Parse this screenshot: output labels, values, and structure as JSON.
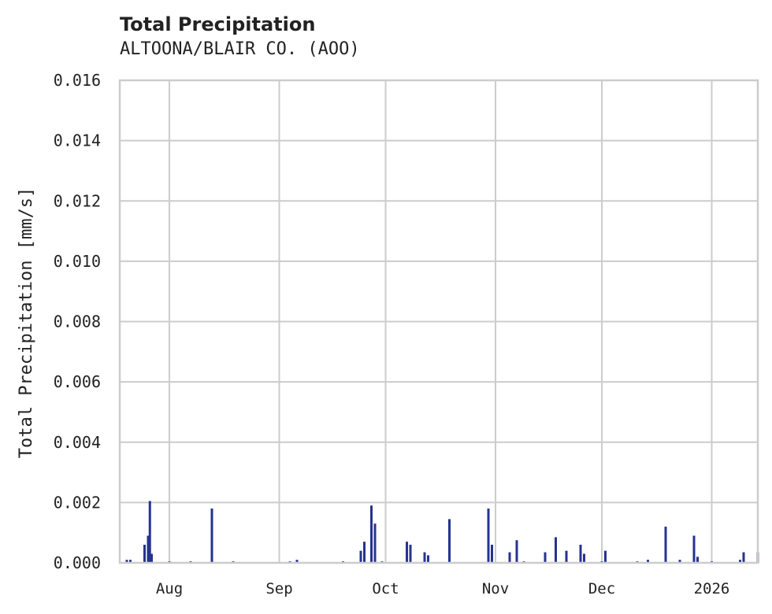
{
  "header": {
    "title": "Total Precipitation",
    "subtitle": "ALTOONA/BLAIR CO. (AOO)"
  },
  "colors": {
    "bar": "#26338f",
    "grid": "#cccccc",
    "frame": "#cccccc",
    "text": "#222222"
  },
  "chart_data": {
    "type": "bar",
    "title": "Total Precipitation",
    "subtitle": "ALTOONA/BLAIR CO. (AOO)",
    "xlabel": "",
    "ylabel": "Total Precipitation [mm/s]",
    "ylim": [
      0,
      0.016
    ],
    "yticks": [
      "0.000",
      "0.002",
      "0.004",
      "0.006",
      "0.008",
      "0.010",
      "0.012",
      "0.014",
      "0.016"
    ],
    "xticks": [
      "Aug",
      "Sep",
      "Oct",
      "Nov",
      "Dec",
      "2026"
    ],
    "grid": true,
    "legend": null,
    "x_range": [
      "2025-07-18",
      "2026-01-14"
    ],
    "series": [
      {
        "name": "Total Precipitation",
        "points": [
          {
            "x": "2025-07-20",
            "y": 0.0001
          },
          {
            "x": "2025-07-21",
            "y": 0.0001
          },
          {
            "x": "2025-07-25",
            "y": 0.0006
          },
          {
            "x": "2025-07-26",
            "y": 0.0009
          },
          {
            "x": "2025-07-26T12",
            "y": 0.00205
          },
          {
            "x": "2025-07-27",
            "y": 0.0003
          },
          {
            "x": "2025-08-01",
            "y": 5e-05
          },
          {
            "x": "2025-08-07",
            "y": 5e-05
          },
          {
            "x": "2025-08-13",
            "y": 0.0018
          },
          {
            "x": "2025-08-19",
            "y": 5e-05
          },
          {
            "x": "2025-09-04",
            "y": 5e-05
          },
          {
            "x": "2025-09-06",
            "y": 0.0001
          },
          {
            "x": "2025-09-19",
            "y": 5e-05
          },
          {
            "x": "2025-09-24",
            "y": 0.0004
          },
          {
            "x": "2025-09-25",
            "y": 0.0007
          },
          {
            "x": "2025-09-27",
            "y": 0.0019
          },
          {
            "x": "2025-09-28",
            "y": 0.0013
          },
          {
            "x": "2025-09-30",
            "y": 5e-05
          },
          {
            "x": "2025-10-07",
            "y": 0.0007
          },
          {
            "x": "2025-10-08",
            "y": 0.0006
          },
          {
            "x": "2025-10-12",
            "y": 0.00035
          },
          {
            "x": "2025-10-13",
            "y": 0.00025
          },
          {
            "x": "2025-10-19",
            "y": 0.00145
          },
          {
            "x": "2025-10-30",
            "y": 0.0018
          },
          {
            "x": "2025-10-31",
            "y": 0.0006
          },
          {
            "x": "2025-11-05",
            "y": 0.00035
          },
          {
            "x": "2025-11-07",
            "y": 0.00075
          },
          {
            "x": "2025-11-09",
            "y": 5e-05
          },
          {
            "x": "2025-11-15",
            "y": 0.00035
          },
          {
            "x": "2025-11-18",
            "y": 0.00085
          },
          {
            "x": "2025-11-21",
            "y": 0.0004
          },
          {
            "x": "2025-11-25",
            "y": 0.0006
          },
          {
            "x": "2025-11-26",
            "y": 0.0003
          },
          {
            "x": "2025-12-01",
            "y": 5e-05
          },
          {
            "x": "2025-12-02",
            "y": 0.0004
          },
          {
            "x": "2025-12-11",
            "y": 5e-05
          },
          {
            "x": "2025-12-14",
            "y": 0.0001
          },
          {
            "x": "2025-12-19",
            "y": 0.0012
          },
          {
            "x": "2025-12-23",
            "y": 0.0001
          },
          {
            "x": "2025-12-27",
            "y": 0.0009
          },
          {
            "x": "2025-12-28",
            "y": 0.0002
          },
          {
            "x": "2026-01-01",
            "y": 5e-05
          },
          {
            "x": "2026-01-09",
            "y": 0.0001
          },
          {
            "x": "2026-01-10",
            "y": 0.00035
          },
          {
            "x": "2026-01-14",
            "y": 0.00035
          }
        ]
      }
    ]
  }
}
